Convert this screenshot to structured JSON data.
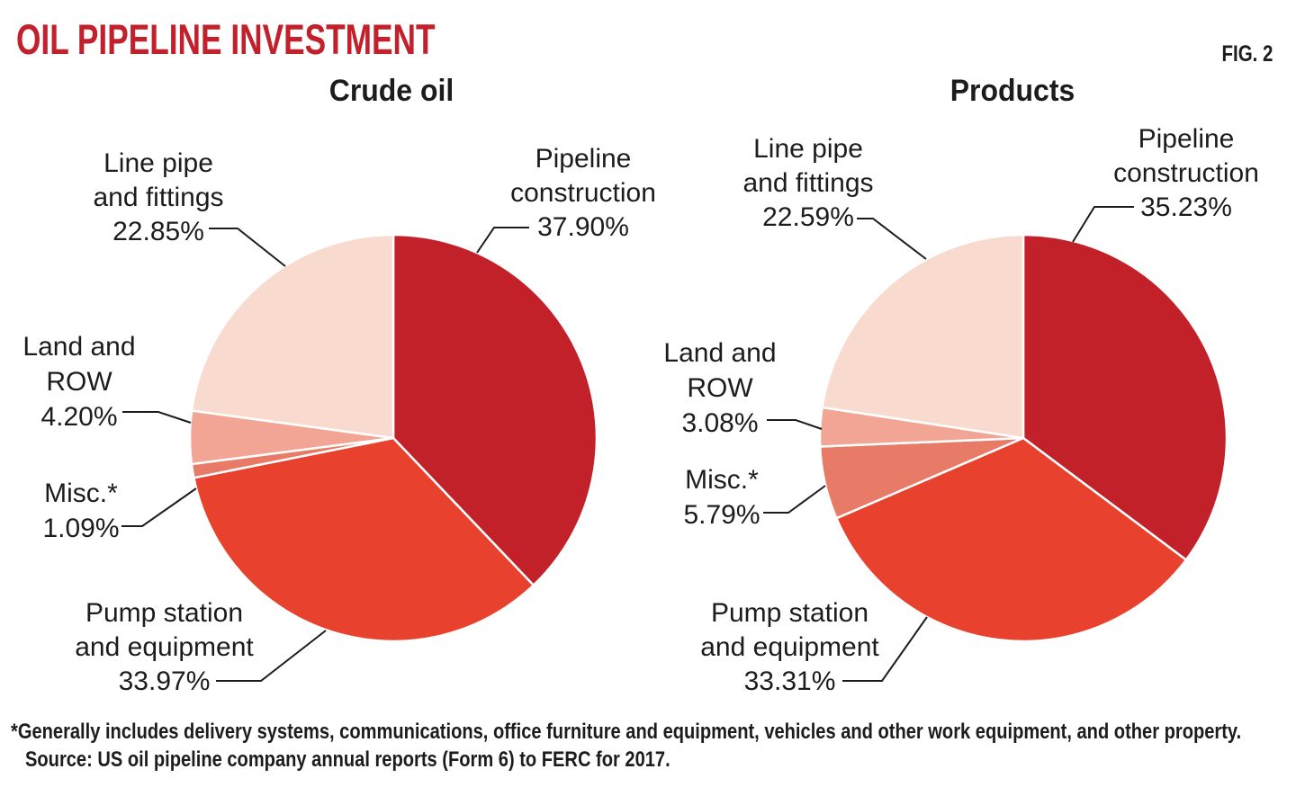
{
  "header": {
    "title": "OIL PIPELINE INVESTMENT",
    "fig_label": "FIG. 2"
  },
  "palette": {
    "accent_red": "#c2202a",
    "text": "#1c1c1c",
    "background": "#ffffff",
    "slice_separator": "#ffffff"
  },
  "chart_data": [
    {
      "type": "pie",
      "title": "Crude oil",
      "start": "top",
      "direction": "clockwise",
      "unit": "%",
      "slices": [
        {
          "name": "Pipeline construction",
          "label_lines": [
            "Pipeline",
            "construction"
          ],
          "value": 37.9,
          "pct": "37.90%",
          "color": "#c2212a"
        },
        {
          "name": "Pump station and equipment",
          "label_lines": [
            "Pump station",
            "and equipment"
          ],
          "value": 33.97,
          "pct": "33.97%",
          "color": "#e8422e"
        },
        {
          "name": "Misc.*",
          "label_lines": [
            "Misc.*"
          ],
          "value": 1.09,
          "pct": "1.09%",
          "color": "#e87a68"
        },
        {
          "name": "Land and ROW",
          "label_lines": [
            "Land and",
            "ROW"
          ],
          "value": 4.2,
          "pct": "4.20%",
          "color": "#f2a595"
        },
        {
          "name": "Line pipe and fittings",
          "label_lines": [
            "Line pipe",
            "and fittings"
          ],
          "value": 22.85,
          "pct": "22.85%",
          "color": "#f8dacf"
        }
      ]
    },
    {
      "type": "pie",
      "title": "Products",
      "start": "top",
      "direction": "clockwise",
      "unit": "%",
      "slices": [
        {
          "name": "Pipeline construction",
          "label_lines": [
            "Pipeline",
            "construction"
          ],
          "value": 35.23,
          "pct": "35.23%",
          "color": "#c2212a"
        },
        {
          "name": "Pump station and equipment",
          "label_lines": [
            "Pump station",
            "and equipment"
          ],
          "value": 33.31,
          "pct": "33.31%",
          "color": "#e8422e"
        },
        {
          "name": "Misc.*",
          "label_lines": [
            "Misc.*"
          ],
          "value": 5.79,
          "pct": "5.79%",
          "color": "#e87a68"
        },
        {
          "name": "Land and ROW",
          "label_lines": [
            "Land and",
            "ROW"
          ],
          "value": 3.08,
          "pct": "3.08%",
          "color": "#f2a595"
        },
        {
          "name": "Line pipe and fittings",
          "label_lines": [
            "Line pipe",
            "and fittings"
          ],
          "value": 22.59,
          "pct": "22.59%",
          "color": "#f8dacf"
        }
      ]
    }
  ],
  "footnote": {
    "line1": "*Generally includes delivery systems, communications, office furniture and equipment, vehicles and other work equipment, and other property.",
    "line2": "Source: US oil pipeline company annual reports (Form 6) to FERC for 2017."
  }
}
